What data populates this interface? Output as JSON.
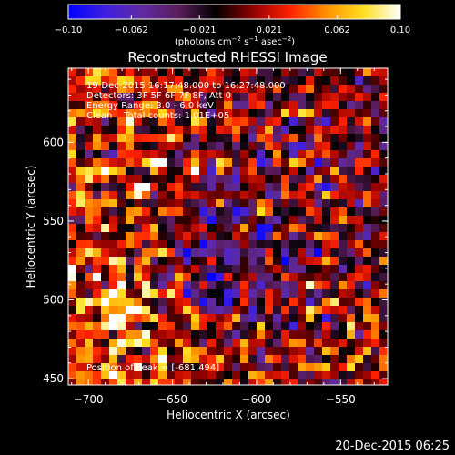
{
  "chart_data": {
    "type": "heatmap",
    "title": "Reconstructed RHESSI Image",
    "xlabel": "Heliocentric X (arcsec)",
    "ylabel": "Heliocentric Y (arcsec)",
    "xlim": [
      -712,
      -522
    ],
    "ylim": [
      446,
      647
    ],
    "x_ticks": [
      -700,
      -650,
      -600,
      -550
    ],
    "x_tick_labels": [
      "−700",
      "−650",
      "−600",
      "−550"
    ],
    "y_ticks": [
      450,
      500,
      550,
      600
    ],
    "y_tick_labels": [
      "450",
      "500",
      "550",
      "600"
    ],
    "colorbar": {
      "range": [
        -0.1,
        0.1
      ],
      "tick_values": [
        -0.1,
        -0.062,
        -0.021,
        0.021,
        0.062,
        0.1
      ],
      "tick_labels": [
        "−0.10",
        "−0.062",
        "−0.021",
        "0.021",
        "0.062",
        "0.10"
      ],
      "units_prefix": "(photons cm",
      "units_sup1": "−2",
      "units_mid": " s",
      "units_sup2": "−1",
      "units_mid2": " asec",
      "units_sup3": "−2",
      "units_suffix": ")",
      "colors": [
        "#0000ff",
        "#4020e0",
        "#602aa0",
        "#5a1c5a",
        "#000000",
        "#900000",
        "#ff2000",
        "#ff9000",
        "#ffe020",
        "#ffffff"
      ]
    },
    "annotations": [
      "19-Dec-2015 16:17:48.000 to 16:27:48.000",
      "Detectors: 3F 5F 6F 7F 8F, Att 0",
      "Energy Range: 3.0 - 6.0 keV",
      "Clean    Total counts: 1.01E+05"
    ],
    "peak_label": "Position of Peak = [-681,494]",
    "peak_position": [
      -681,
      494
    ],
    "footer_date": "20-Dec-2015 06:25",
    "grid": false,
    "legend": "colorbar-top"
  }
}
